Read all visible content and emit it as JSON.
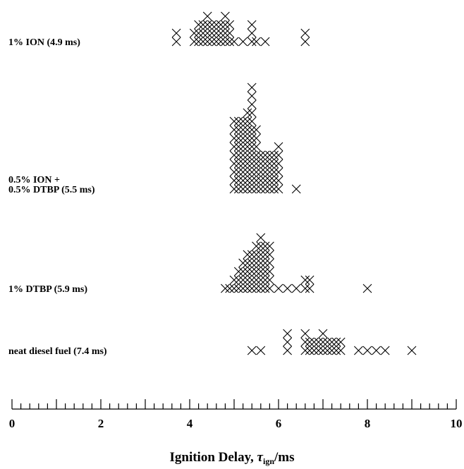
{
  "chart_data": {
    "type": "dotplot",
    "x_label": {
      "text": "Ignition Delay, ",
      "symbol": "τ",
      "subscript": "ign",
      "unit": "/ms"
    },
    "xlim": [
      0,
      10
    ],
    "xticks": [
      0,
      2,
      4,
      6,
      8,
      10
    ],
    "minor_xticks": [
      0,
      0.2,
      0.4,
      0.6,
      0.8,
      1,
      1.2,
      1.4,
      1.6,
      1.8,
      2,
      2.2,
      2.4,
      2.6,
      2.8,
      3,
      3.2,
      3.4,
      3.6,
      3.8,
      4,
      4.2,
      4.4,
      4.6,
      4.8,
      5,
      5.2,
      5.4,
      5.6,
      5.8,
      6,
      6.2,
      6.4,
      6.6,
      6.8,
      7,
      7.2,
      7.4,
      7.6,
      7.8,
      8,
      8.2,
      8.4,
      8.6,
      8.8,
      9,
      9.2,
      9.4,
      9.6,
      9.8,
      10
    ],
    "series": [
      {
        "label": [
          "1% ION (4.9 ms)"
        ],
        "x": [
          3.7,
          4.1,
          4.2,
          4.3,
          4.4,
          4.5,
          4.6,
          4.7,
          4.8,
          4.9,
          5.0,
          5.2,
          5.4,
          5.5,
          5.7,
          6.6
        ],
        "counts": [
          2,
          2,
          3,
          3,
          4,
          3,
          3,
          3,
          4,
          3,
          1,
          1,
          3,
          1,
          1,
          2
        ]
      },
      {
        "label": [
          "0.5% ION +",
          "0.5% DTBP (5.5 ms)"
        ],
        "x": [
          5.0,
          5.1,
          5.2,
          5.3,
          5.4,
          5.5,
          5.6,
          5.7,
          5.8,
          5.9,
          6.0,
          6.4
        ],
        "counts": [
          9,
          9,
          9,
          10,
          13,
          8,
          5,
          5,
          5,
          5,
          6,
          1
        ]
      },
      {
        "label": [
          "1% DTBP (5.9 ms)"
        ],
        "x": [
          4.8,
          4.9,
          5.0,
          5.1,
          5.2,
          5.3,
          5.4,
          5.5,
          5.6,
          5.7,
          5.8,
          6.0,
          6.2,
          6.4,
          6.6,
          6.7,
          8.0
        ],
        "counts": [
          1,
          1,
          2,
          3,
          4,
          5,
          5,
          6,
          7,
          6,
          6,
          1,
          1,
          1,
          2,
          2,
          1
        ]
      },
      {
        "label": [
          "neat diesel fuel (7.4 ms)"
        ],
        "x": [
          5.4,
          5.6,
          6.2,
          6.6,
          6.7,
          6.8,
          6.9,
          7.0,
          7.1,
          7.2,
          7.3,
          7.4,
          7.8,
          8.0,
          8.2,
          8.4,
          9.0
        ],
        "counts": [
          1,
          1,
          3,
          3,
          2,
          2,
          2,
          3,
          2,
          2,
          2,
          2,
          1,
          1,
          1,
          1,
          1
        ]
      }
    ]
  }
}
